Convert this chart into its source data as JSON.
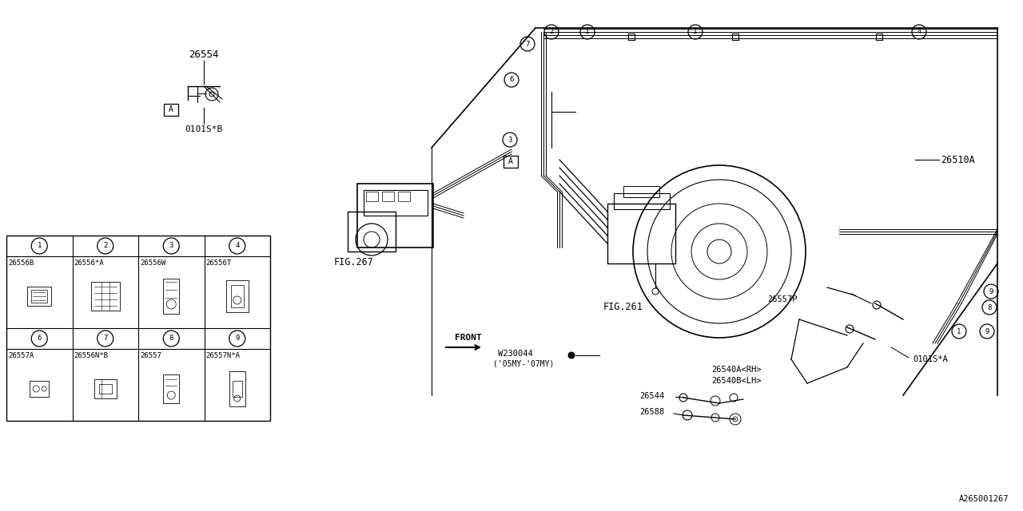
{
  "bg_color": "#ffffff",
  "line_color": "#000000",
  "text_color": "#000000",
  "fig_id": "A265001267",
  "upper_nums": [
    "1",
    "2",
    "3",
    "4"
  ],
  "upper_codes": [
    "26556B",
    "26556*A",
    "26556W",
    "26556T"
  ],
  "lower_nums": [
    "6",
    "7",
    "8",
    "9"
  ],
  "lower_codes": [
    "26557A",
    "26556N*B",
    "26557",
    "26557N*A"
  ]
}
